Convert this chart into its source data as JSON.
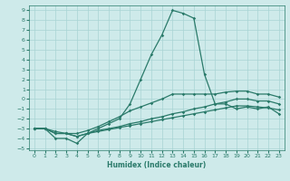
{
  "xlabel": "Humidex (Indice chaleur)",
  "xlim": [
    -0.5,
    23.5
  ],
  "ylim": [
    -5.2,
    9.5
  ],
  "xticks": [
    0,
    1,
    2,
    3,
    4,
    5,
    6,
    7,
    8,
    9,
    10,
    11,
    12,
    13,
    14,
    15,
    16,
    17,
    18,
    19,
    20,
    21,
    22,
    23
  ],
  "yticks": [
    -5,
    -4,
    -3,
    -2,
    -1,
    0,
    1,
    2,
    3,
    4,
    5,
    6,
    7,
    8,
    9
  ],
  "bg_color": "#ceeaea",
  "line_color": "#2a7a6a",
  "grid_color": "#a8d4d4",
  "lines": [
    {
      "x": [
        0,
        1,
        2,
        3,
        4,
        5,
        6,
        7,
        8,
        9,
        10,
        11,
        12,
        13,
        14,
        15,
        16,
        17,
        18,
        19,
        20,
        21,
        22,
        23
      ],
      "y": [
        -3.0,
        -3.0,
        -4.0,
        -4.0,
        -4.5,
        -3.5,
        -3.0,
        -2.5,
        -2.0,
        -0.5,
        2.0,
        4.5,
        6.5,
        9.0,
        8.7,
        8.2,
        2.5,
        -0.5,
        -0.5,
        -1.0,
        -0.8,
        -1.0,
        -0.8,
        -1.5
      ]
    },
    {
      "x": [
        0,
        1,
        2,
        3,
        4,
        5,
        6,
        7,
        8,
        9,
        10,
        11,
        12,
        13,
        14,
        15,
        16,
        17,
        18,
        19,
        20,
        21,
        22,
        23
      ],
      "y": [
        -3.0,
        -3.0,
        -3.5,
        -3.5,
        -3.5,
        -3.2,
        -2.8,
        -2.3,
        -1.8,
        -1.2,
        -0.8,
        -0.4,
        0.0,
        0.5,
        0.5,
        0.5,
        0.5,
        0.5,
        0.7,
        0.8,
        0.8,
        0.5,
        0.5,
        0.2
      ]
    },
    {
      "x": [
        0,
        1,
        2,
        3,
        4,
        5,
        6,
        7,
        8,
        9,
        10,
        11,
        12,
        13,
        14,
        15,
        16,
        17,
        18,
        19,
        20,
        21,
        22,
        23
      ],
      "y": [
        -3.0,
        -3.0,
        -3.5,
        -3.5,
        -3.8,
        -3.5,
        -3.2,
        -3.0,
        -2.8,
        -2.5,
        -2.3,
        -2.0,
        -1.8,
        -1.5,
        -1.3,
        -1.0,
        -0.8,
        -0.5,
        -0.3,
        0.0,
        0.0,
        -0.2,
        -0.2,
        -0.5
      ]
    },
    {
      "x": [
        0,
        1,
        2,
        3,
        4,
        5,
        6,
        7,
        8,
        9,
        10,
        11,
        12,
        13,
        14,
        15,
        16,
        17,
        18,
        19,
        20,
        21,
        22,
        23
      ],
      "y": [
        -3.0,
        -3.0,
        -3.3,
        -3.5,
        -3.8,
        -3.5,
        -3.3,
        -3.1,
        -2.9,
        -2.7,
        -2.5,
        -2.3,
        -2.1,
        -1.9,
        -1.7,
        -1.5,
        -1.3,
        -1.1,
        -0.9,
        -0.7,
        -0.7,
        -0.8,
        -0.9,
        -1.1
      ]
    }
  ]
}
